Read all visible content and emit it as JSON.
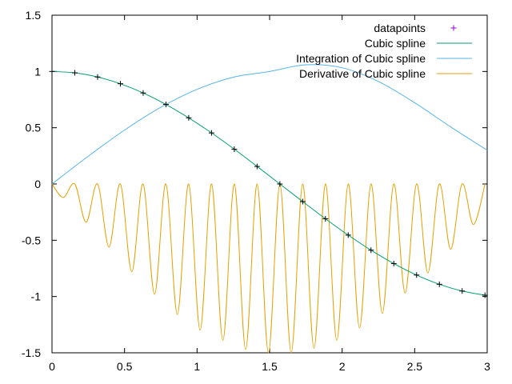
{
  "chart_data": {
    "type": "line",
    "title": "",
    "xlabel": "",
    "ylabel": "",
    "xlim": [
      0,
      3
    ],
    "ylim": [
      -1.5,
      1.5
    ],
    "xticks": [
      "0",
      "0.5",
      "1",
      "1.5",
      "2",
      "2.5",
      "3"
    ],
    "yticks": [
      "1.5",
      "1",
      "0.5",
      "0",
      "-0.5",
      "-1",
      "-1.5"
    ],
    "grid": false,
    "legend_position": "top-right",
    "series": [
      {
        "name": "datapoints",
        "style": "points",
        "color": "#9400d3",
        "x": [
          0,
          0.1571,
          0.3142,
          0.4712,
          0.6283,
          0.7854,
          0.9425,
          1.0996,
          1.2566,
          1.4137,
          1.5708,
          1.7279,
          1.885,
          2.042,
          2.1991,
          2.3562,
          2.5133,
          2.6704,
          2.8274,
          2.9845
        ],
        "y": [
          1,
          0.988,
          0.951,
          0.891,
          0.809,
          0.707,
          0.588,
          0.454,
          0.309,
          0.156,
          0,
          -0.156,
          -0.309,
          -0.454,
          -0.588,
          -0.707,
          -0.809,
          -0.891,
          -0.951,
          -0.988
        ]
      },
      {
        "name": "Cubic spline",
        "style": "line",
        "color": "#009e73",
        "x": [
          0,
          0.157,
          0.314,
          0.471,
          0.628,
          0.785,
          0.942,
          1.1,
          1.257,
          1.414,
          1.571,
          1.728,
          1.885,
          2.042,
          2.199,
          2.356,
          2.513,
          2.67,
          2.827,
          2.985,
          3.0
        ],
        "y": [
          1,
          0.988,
          0.951,
          0.891,
          0.809,
          0.707,
          0.588,
          0.454,
          0.309,
          0.156,
          0,
          -0.156,
          -0.309,
          -0.454,
          -0.588,
          -0.707,
          -0.809,
          -0.891,
          -0.951,
          -0.988,
          -0.99
        ]
      },
      {
        "name": "Integration of Cubic spline",
        "style": "line",
        "color": "#56b4e9",
        "x": [
          0,
          0.25,
          0.5,
          0.75,
          1.0,
          1.25,
          1.5,
          1.75,
          2.0,
          2.25,
          2.5,
          2.75,
          3.0
        ],
        "y": [
          0,
          0.247,
          0.479,
          0.682,
          0.841,
          0.949,
          1.0,
          1.059,
          1.033,
          0.911,
          0.722,
          0.506,
          0.3
        ]
      },
      {
        "name": "Derivative of Cubic spline",
        "style": "line",
        "color": "#e69f00",
        "x": [
          0,
          0.078,
          0.157,
          0.235,
          0.314,
          0.393,
          0.471,
          0.55,
          0.628,
          0.707,
          0.785,
          0.864,
          0.942,
          1.021,
          1.1,
          1.178,
          1.257,
          1.335,
          1.414,
          1.492,
          1.571,
          1.649,
          1.728,
          1.806,
          1.885,
          1.963,
          2.042,
          2.12,
          2.199,
          2.277,
          2.356,
          2.434,
          2.513,
          2.591,
          2.67,
          2.748,
          2.827,
          2.905,
          2.985
        ],
        "y": [
          0,
          -0.12,
          0,
          -0.34,
          0,
          -0.56,
          0,
          -0.78,
          0,
          -0.98,
          0,
          -1.16,
          0,
          -1.3,
          0,
          -1.39,
          0,
          -1.47,
          0,
          -1.5,
          0,
          -1.5,
          0,
          -1.46,
          0,
          -1.39,
          0,
          -1.28,
          0,
          -1.15,
          0,
          -0.97,
          0,
          -0.79,
          0,
          -0.58,
          0,
          -0.36,
          0
        ]
      }
    ]
  }
}
